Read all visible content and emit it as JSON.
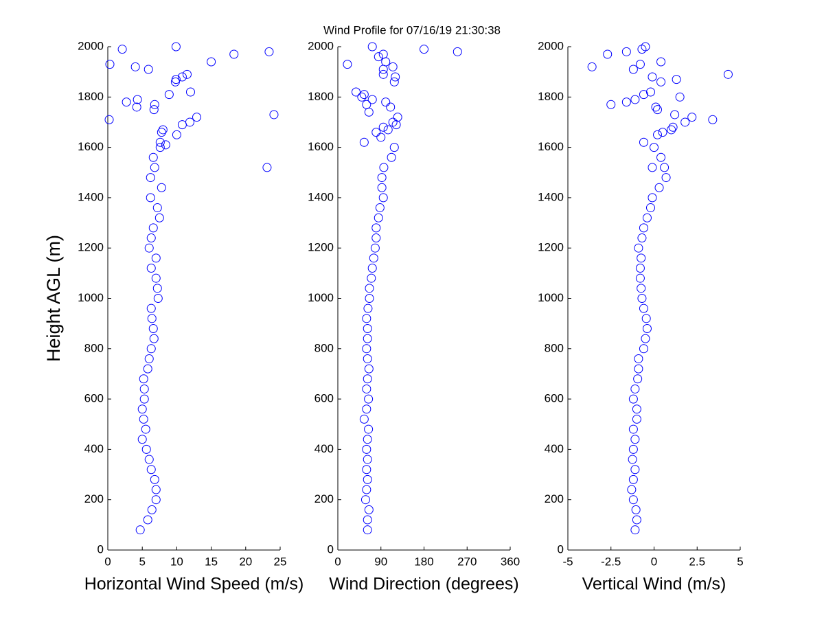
{
  "chart_data": [
    {
      "type": "scatter",
      "title": "Wind Profile for  07/16/19 21:30:38",
      "xlabel": "Horizontal Wind Speed (m/s)",
      "ylabel": "Height AGL (m)",
      "color": "#0000ff",
      "xlim": [
        0,
        25
      ],
      "ylim": [
        0,
        2000
      ],
      "xticks": [
        0,
        5,
        10,
        15,
        20,
        25
      ],
      "yticks": [
        0,
        200,
        400,
        600,
        800,
        1000,
        1200,
        1400,
        1600,
        1800,
        2000
      ],
      "x": [
        4.7,
        5.8,
        6.4,
        7.0,
        7.0,
        6.8,
        6.3,
        6.0,
        5.6,
        5.0,
        5.5,
        5.2,
        5.0,
        5.3,
        5.3,
        5.2,
        5.8,
        6.0,
        6.3,
        6.7,
        6.6,
        6.4,
        6.3,
        7.3,
        7.2,
        7.0,
        6.3,
        7.0,
        6.0,
        6.3,
        6.6,
        7.5,
        7.2,
        6.2,
        7.8,
        6.2,
        6.8,
        6.6,
        7.6,
        23.1,
        8.4,
        7.6,
        10.0,
        7.8,
        8.0,
        10.8,
        11.9,
        0.2,
        12.9,
        24.1,
        6.7,
        4.2,
        6.8,
        2.7,
        4.3,
        8.9,
        12.0,
        9.8,
        9.9,
        10.8,
        11.5,
        5.9,
        4.0,
        0.3,
        15.0,
        18.3,
        23.4,
        2.1,
        9.9
      ],
      "y": [
        80,
        120,
        160,
        200,
        240,
        280,
        320,
        360,
        400,
        440,
        480,
        520,
        560,
        600,
        640,
        680,
        720,
        760,
        800,
        840,
        880,
        920,
        960,
        1000,
        1040,
        1080,
        1120,
        1160,
        1200,
        1240,
        1280,
        1320,
        1360,
        1400,
        1440,
        1480,
        1520,
        1560,
        1600,
        1520,
        1610,
        1620,
        1650,
        1660,
        1670,
        1690,
        1700,
        1710,
        1720,
        1730,
        1750,
        1760,
        1770,
        1780,
        1790,
        1810,
        1820,
        1860,
        1870,
        1880,
        1890,
        1910,
        1920,
        1930,
        1940,
        1970,
        1980,
        1990,
        2000
      ]
    },
    {
      "type": "scatter",
      "xlabel": "Wind Direction (degrees)",
      "color": "#0000ff",
      "xlim": [
        0,
        360
      ],
      "ylim": [
        0,
        2000
      ],
      "xticks": [
        0,
        90,
        180,
        270,
        360
      ],
      "yticks": [
        0,
        200,
        400,
        600,
        800,
        1000,
        1200,
        1400,
        1600,
        1800,
        2000
      ],
      "x": [
        62,
        62,
        65,
        58,
        60,
        62,
        60,
        62,
        60,
        62,
        64,
        55,
        60,
        64,
        60,
        62,
        65,
        62,
        60,
        62,
        62,
        60,
        63,
        66,
        66,
        70,
        72,
        75,
        78,
        80,
        80,
        85,
        88,
        95,
        92,
        92,
        96,
        112,
        118,
        55,
        90,
        80,
        105,
        95,
        122,
        115,
        125,
        65,
        110,
        60,
        100,
        72,
        50,
        55,
        38,
        118,
        120,
        95,
        95,
        115,
        20,
        100,
        85,
        95,
        250,
        180,
        72
      ],
      "y": [
        80,
        120,
        160,
        200,
        240,
        280,
        320,
        360,
        400,
        440,
        480,
        520,
        560,
        600,
        640,
        680,
        720,
        760,
        800,
        840,
        880,
        920,
        960,
        1000,
        1040,
        1080,
        1120,
        1160,
        1200,
        1240,
        1280,
        1320,
        1360,
        1400,
        1440,
        1480,
        1520,
        1560,
        1600,
        1620,
        1640,
        1660,
        1670,
        1680,
        1690,
        1700,
        1720,
        1740,
        1760,
        1770,
        1780,
        1790,
        1800,
        1810,
        1820,
        1860,
        1880,
        1890,
        1910,
        1920,
        1930,
        1940,
        1960,
        1970,
        1980,
        1990,
        2000
      ]
    },
    {
      "type": "scatter",
      "xlabel": "Vertical Wind (m/s)",
      "color": "#0000ff",
      "xlim": [
        -5,
        5
      ],
      "ylim": [
        0,
        2000
      ],
      "xticks": [
        -5,
        -2.5,
        0,
        2.5,
        5
      ],
      "yticks": [
        0,
        200,
        400,
        600,
        800,
        1000,
        1200,
        1400,
        1600,
        1800,
        2000
      ],
      "x": [
        -1.1,
        -1.0,
        -1.05,
        -1.2,
        -1.3,
        -1.2,
        -1.1,
        -1.25,
        -1.2,
        -1.1,
        -1.2,
        -1.0,
        -1.0,
        -1.2,
        -1.1,
        -0.95,
        -0.9,
        -0.9,
        -0.6,
        -0.5,
        -0.4,
        -0.45,
        -0.6,
        -0.7,
        -0.75,
        -0.8,
        -0.8,
        -0.75,
        -0.9,
        -0.7,
        -0.6,
        -0.4,
        -0.2,
        -0.1,
        0.3,
        0.7,
        0.6,
        0.4,
        0.0,
        -0.1,
        -0.6,
        0.2,
        0.5,
        1.0,
        1.1,
        1.8,
        3.4,
        2.2,
        1.2,
        0.2,
        0.1,
        -2.5,
        -1.6,
        -1.1,
        1.5,
        -0.6,
        -0.2,
        0.4,
        1.3,
        -0.1,
        4.3,
        -1.2,
        -3.6,
        -0.8,
        0.4,
        -2.7,
        -1.6,
        -0.7,
        -0.5
      ],
      "y": [
        80,
        120,
        160,
        200,
        240,
        280,
        320,
        360,
        400,
        440,
        480,
        520,
        560,
        600,
        640,
        680,
        720,
        760,
        800,
        840,
        880,
        920,
        960,
        1000,
        1040,
        1080,
        1120,
        1160,
        1200,
        1240,
        1280,
        1320,
        1360,
        1400,
        1440,
        1480,
        1520,
        1560,
        1600,
        1520,
        1620,
        1650,
        1660,
        1670,
        1680,
        1700,
        1710,
        1720,
        1730,
        1750,
        1760,
        1770,
        1780,
        1790,
        1800,
        1810,
        1820,
        1860,
        1870,
        1880,
        1890,
        1910,
        1920,
        1930,
        1940,
        1970,
        1980,
        1990,
        2000
      ]
    }
  ]
}
